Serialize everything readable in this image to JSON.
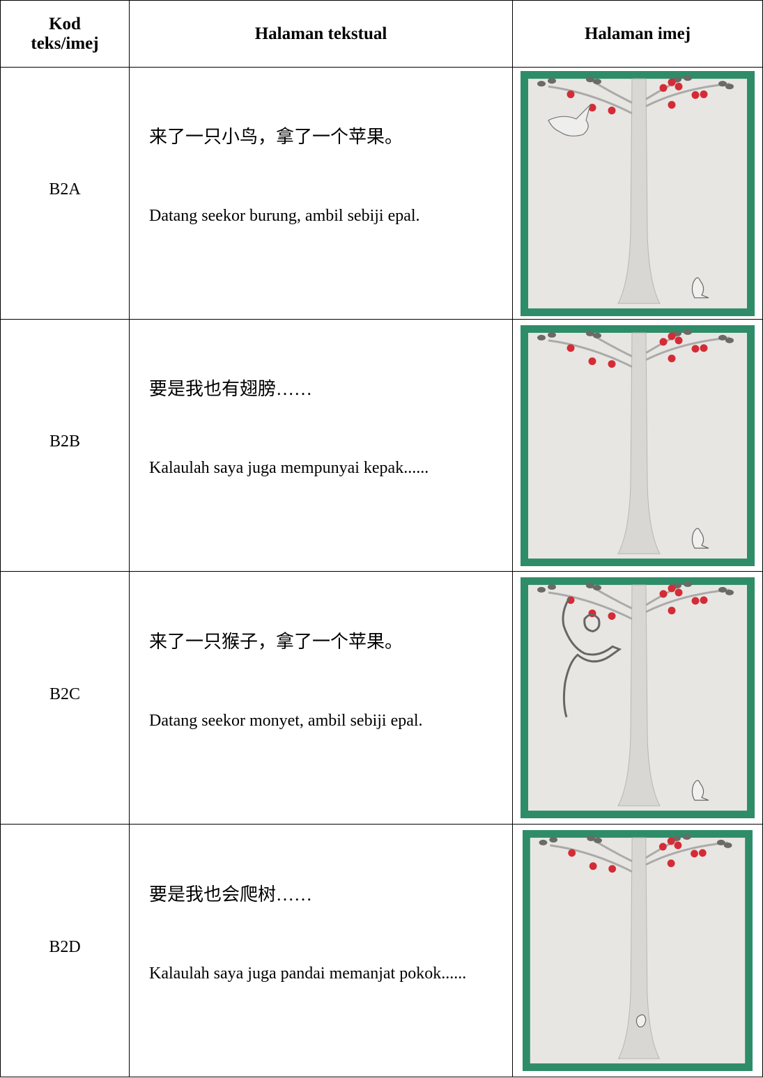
{
  "table": {
    "header": [
      "Kod teks/imej",
      "Halaman tekstual",
      "Halaman imej"
    ],
    "rows": [
      {
        "code": "B2A",
        "chinese": "来了一只小鸟，拿了一个苹果。",
        "malay": "Datang seekor burung, ambil sebiji epal."
      },
      {
        "code": "B2B",
        "chinese": "要是我也有翅膀……",
        "malay": "Kalaulah saya juga mempunyai kepak......"
      },
      {
        "code": "B2C",
        "chinese": "来了一只猴子，拿了一个苹果。",
        "malay": "Datang seekor monyet, ambil sebiji epal."
      },
      {
        "code": "B2D",
        "chinese": "要是我也会爬树……",
        "malay": "Kalaulah saya juga pandai memanjat pokok......"
      }
    ]
  }
}
